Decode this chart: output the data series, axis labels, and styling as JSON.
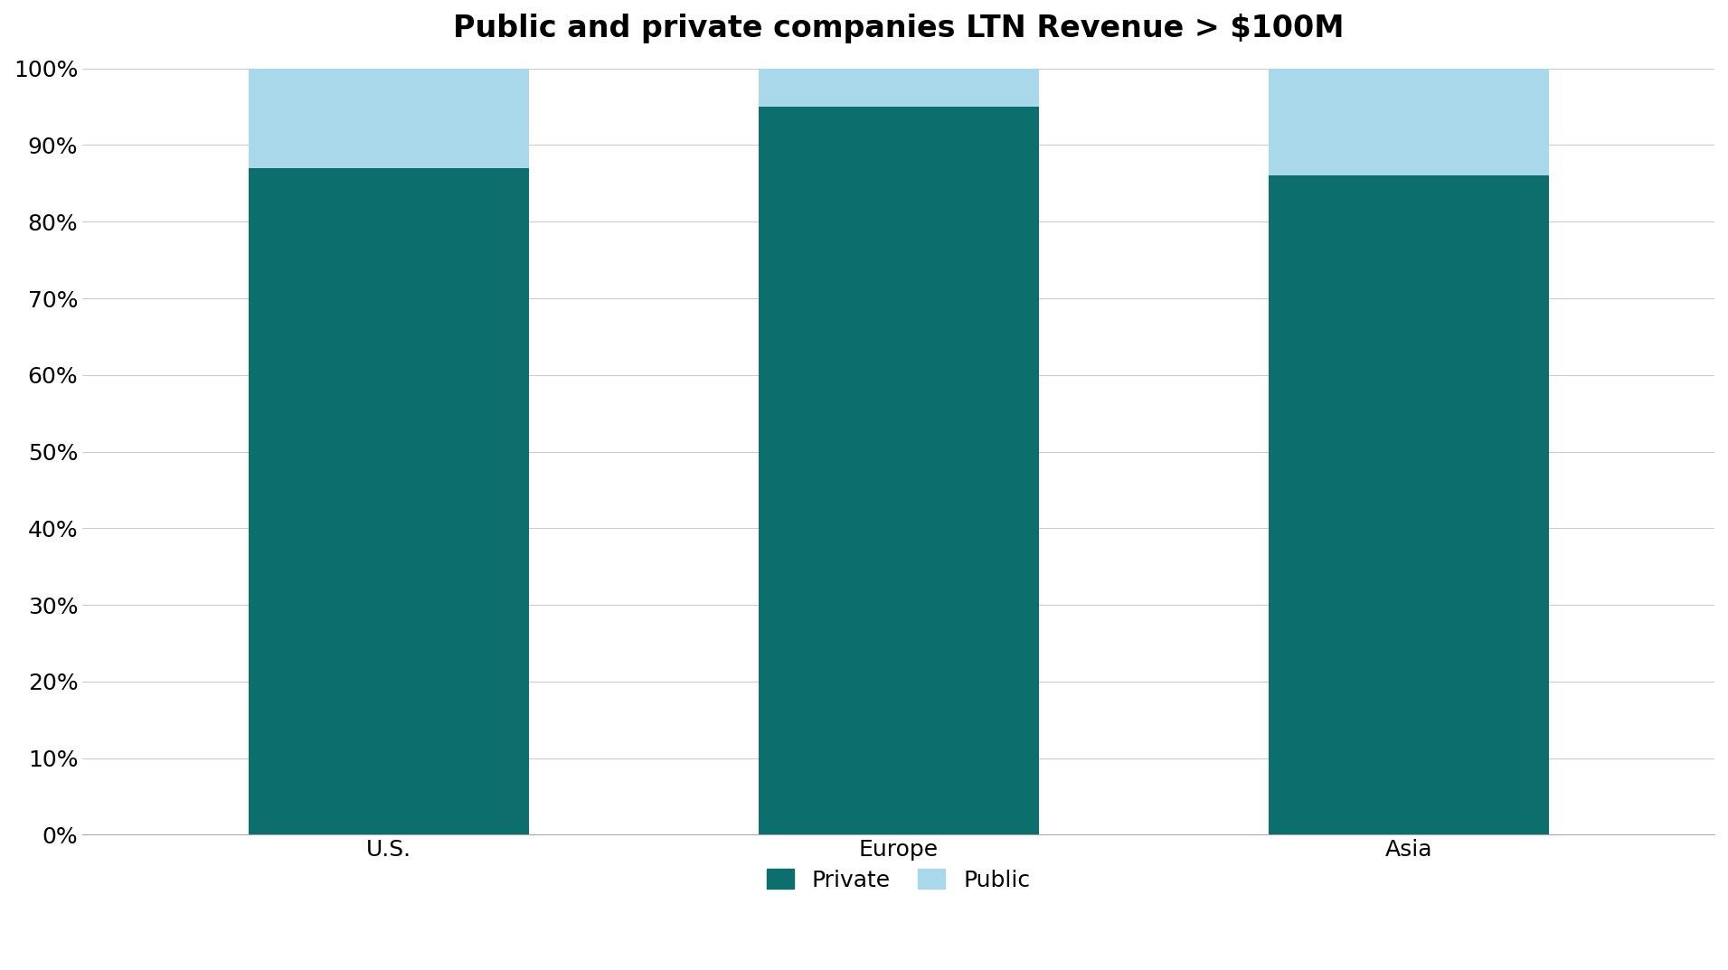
{
  "title": "Public and private companies LTN Revenue > $100M",
  "categories": [
    "U.S.",
    "Europe",
    "Asia"
  ],
  "private_values": [
    0.87,
    0.95,
    0.86
  ],
  "public_values": [
    0.13,
    0.05,
    0.14
  ],
  "private_color": "#0d6e6e",
  "public_color": "#a8d8ea",
  "background_color": "#ffffff",
  "grid_color": "#cccccc",
  "title_fontsize": 24,
  "tick_fontsize": 18,
  "legend_fontsize": 18,
  "bar_width": 0.55,
  "ylim": [
    0,
    1.0
  ],
  "yticks": [
    0.0,
    0.1,
    0.2,
    0.3,
    0.4,
    0.5,
    0.6,
    0.7,
    0.8,
    0.9,
    1.0
  ],
  "ytick_labels": [
    "0%",
    "10%",
    "20%",
    "30%",
    "40%",
    "50%",
    "60%",
    "70%",
    "80%",
    "90%",
    "100%"
  ],
  "legend_labels": [
    "Private",
    "Public"
  ],
  "legend_location": "lower center"
}
